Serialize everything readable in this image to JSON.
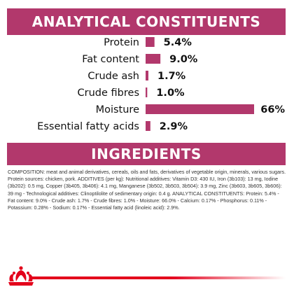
{
  "analytical": {
    "title": "ANALYTICAL CONSTITUENTS"
  },
  "ingredients": {
    "title": "INGREDIENTS",
    "composition": "COMPOSITION: meat and animal derivatives, cereals, oils and fats, derivatives of vegetable origin, minerals, various sugars. Protein sources: chicken, pork. ADDITIVES (per kg): Nutritional additives: Vitamin D3: 430 IU, Iron (3b103): 13 mg, Iodine (3b202): 0.5 mg, Copper (3b405, 3b406): 4.1 mg, Manganese (3b502, 3b503, 3b504): 3.9 mg, Zinc (3b603, 3b605, 3b606): 39 mg - Technological additives: Clinoptilolite of sedimentary origin: 0.4 g. ANALYTICAL CONSTITUENTS: Protein: 5.4% - Fat content: 9.0% - Crude ash: 1.7% - Crude fibres: 1.0% - Moisture: 66.0% - Calcium: 0.17% - Phosphorus: 0.11% - Potassium: 0.28% - Sodium: 0.17% - Essential fatty acid (linoleic acid): 2.9%."
  },
  "colors": {
    "accent": "#b2386c",
    "logo_red": "#e3001b"
  },
  "logo": {
    "icon": "royal-canin-crown-icon"
  },
  "chart_data": {
    "type": "bar",
    "orientation": "horizontal",
    "categories": [
      "Protein",
      "Fat content",
      "Crude ash",
      "Crude fibres",
      "Moisture",
      "Essential fatty acids"
    ],
    "values": [
      5.4,
      9.0,
      1.7,
      1.0,
      66,
      2.9
    ],
    "value_labels": [
      "5.4%",
      "9.0%",
      "1.7%",
      "1.0%",
      "66%",
      "2.9%"
    ],
    "unit": "%",
    "color": "#b2386c",
    "xlim": [
      0,
      66
    ],
    "grid": false,
    "legend": "none"
  }
}
